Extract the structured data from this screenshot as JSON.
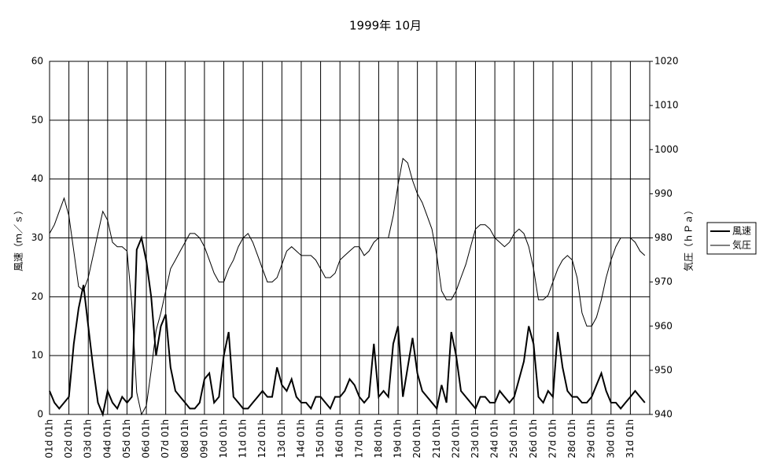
{
  "chart_data": {
    "type": "line",
    "title": "1999年 10月",
    "y_label": "風速（ｍ／ｓ）",
    "y2_label": "気圧（ｈＰａ）",
    "categories": [
      "01d 01h",
      null,
      null,
      null,
      "02d 01h",
      null,
      null,
      null,
      "03d 01h",
      null,
      null,
      null,
      "04d 01h",
      null,
      null,
      null,
      "05d 01h",
      null,
      null,
      null,
      "06d 01h",
      null,
      null,
      null,
      "07d 01h",
      null,
      null,
      null,
      "08d 01h",
      null,
      null,
      null,
      "09d 01h",
      null,
      null,
      null,
      "10d 01h",
      null,
      null,
      null,
      "11d 01h",
      null,
      null,
      null,
      "12d 01h",
      null,
      null,
      null,
      "13d 01h",
      null,
      null,
      null,
      "14d 01h",
      null,
      null,
      null,
      "15d 01h",
      null,
      null,
      null,
      "16d 01h",
      null,
      null,
      null,
      "17d 01h",
      null,
      null,
      null,
      "18d 01h",
      null,
      null,
      null,
      "19d 01h",
      null,
      null,
      null,
      "20d 01h",
      null,
      null,
      null,
      "21d 01h",
      null,
      null,
      null,
      "22d 01h",
      null,
      null,
      null,
      "23d 01h",
      null,
      null,
      null,
      "24d 01h",
      null,
      null,
      null,
      "25d 01h",
      null,
      null,
      null,
      "26d 01h",
      null,
      null,
      null,
      "27d 01h",
      null,
      null,
      null,
      "28d 01h",
      null,
      null,
      null,
      "29d 01h",
      null,
      null,
      null,
      "30d 01h",
      null,
      null,
      null,
      "31d 01h",
      null,
      null,
      null
    ],
    "series": [
      {
        "name": "風速",
        "color": "#000000",
        "values": [
          4,
          2,
          1,
          2,
          3,
          12,
          18,
          22,
          15,
          8,
          2,
          0,
          4,
          2,
          1,
          3,
          2,
          3,
          28,
          30,
          26,
          20,
          10,
          15,
          17,
          8,
          4,
          3,
          2,
          1,
          1,
          2,
          6,
          7,
          2,
          3,
          10,
          14,
          3,
          2,
          1,
          1,
          2,
          3,
          4,
          3,
          3,
          8,
          5,
          4,
          6,
          3,
          2,
          2,
          1,
          3,
          3,
          2,
          1,
          3,
          3,
          4,
          6,
          5,
          3,
          2,
          3,
          12,
          3,
          4,
          3,
          12,
          15,
          3,
          8,
          13,
          7,
          4,
          3,
          2,
          1,
          5,
          2,
          14,
          10,
          4,
          3,
          2,
          1,
          3,
          3,
          2,
          2,
          4,
          3,
          2,
          3,
          6,
          9,
          15,
          12,
          3,
          2,
          4,
          3,
          14,
          8,
          4,
          3,
          3,
          2,
          2,
          3,
          5,
          7,
          4,
          2,
          2,
          1,
          2,
          3,
          4,
          3,
          2
        ]
      },
      {
        "name": "気圧",
        "color": "#000000",
        "axis": "y2",
        "values": [
          981,
          983,
          986,
          989,
          985,
          977,
          969,
          968,
          971,
          976,
          981,
          986,
          984,
          979,
          978,
          978,
          977,
          965,
          945,
          940,
          942,
          950,
          959,
          963,
          968,
          973,
          975,
          977,
          979,
          981,
          981,
          980,
          978,
          975,
          972,
          970,
          970,
          973,
          975,
          978,
          980,
          981,
          979,
          976,
          973,
          970,
          970,
          971,
          974,
          977,
          978,
          977,
          976,
          976,
          976,
          975,
          973,
          971,
          971,
          972,
          975,
          976,
          977,
          978,
          978,
          976,
          977,
          979,
          980,
          980,
          980,
          985,
          992,
          998,
          997,
          993,
          990,
          988,
          985,
          982,
          976,
          968,
          966,
          966,
          968,
          971,
          974,
          978,
          982,
          983,
          983,
          982,
          980,
          979,
          978,
          979,
          981,
          982,
          981,
          978,
          973,
          966,
          966,
          967,
          970,
          973,
          975,
          976,
          975,
          971,
          963,
          960,
          960,
          962,
          966,
          971,
          975,
          978,
          980,
          980,
          980,
          979,
          977,
          976
        ]
      }
    ],
    "ylim": [
      0,
      60
    ],
    "yticks": [
      0,
      10,
      20,
      30,
      40,
      50,
      60
    ],
    "y2lim": [
      940,
      1020
    ],
    "y2ticks": [
      940,
      950,
      960,
      970,
      980,
      990,
      1000,
      1010,
      1020
    ],
    "grid": true,
    "legend": "right"
  }
}
